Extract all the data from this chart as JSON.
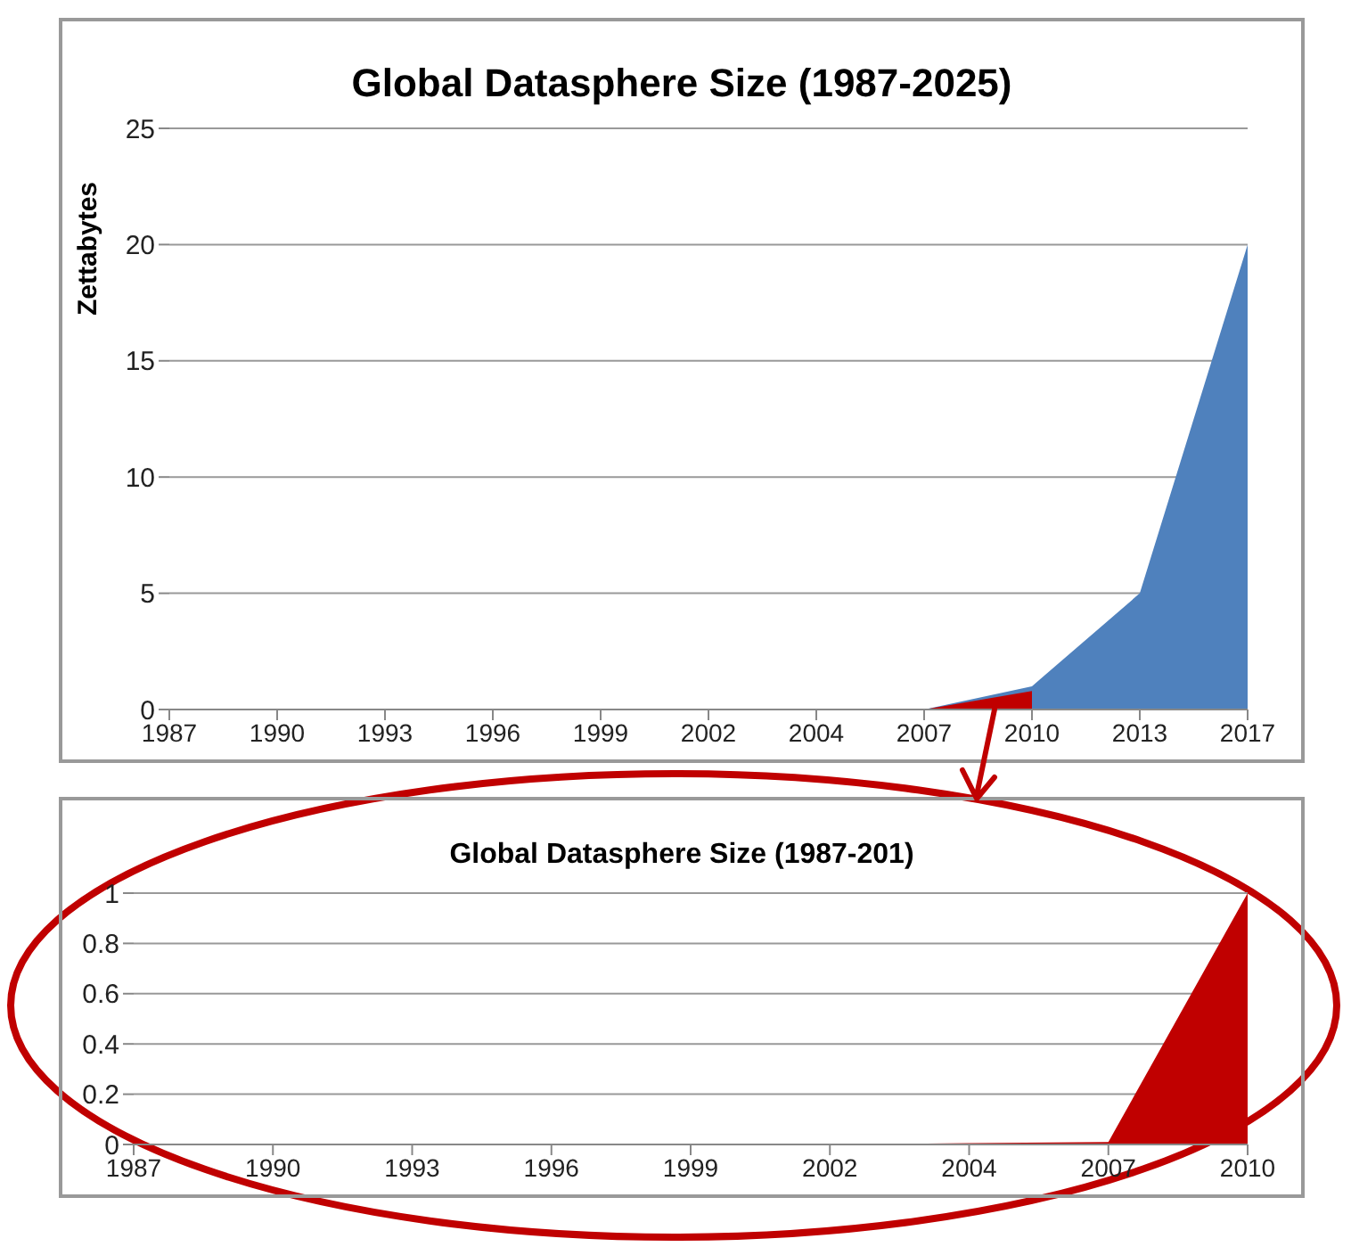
{
  "chart_data": [
    {
      "type": "area",
      "title": "Global Datasphere Size (1987-2025)",
      "ylabel": "Zettabytes",
      "categories": [
        "1987",
        "1990",
        "1993",
        "1996",
        "1999",
        "2002",
        "2004",
        "2007",
        "2010",
        "2013",
        "2017"
      ],
      "ylim": [
        0,
        25
      ],
      "yticks": [
        0,
        5,
        10,
        15,
        20,
        25
      ],
      "grid": "y",
      "legend": false,
      "series": [
        {
          "color": "#4f81bd",
          "values": [
            0,
            0,
            0,
            0,
            0,
            0,
            0,
            0,
            1,
            5,
            20
          ]
        },
        {
          "color": "#c00000",
          "values": [
            null,
            null,
            null,
            null,
            null,
            null,
            null,
            0,
            0.8,
            null,
            null
          ]
        }
      ]
    },
    {
      "type": "area",
      "title": "Global Datasphere Size (1987-201)",
      "categories": [
        "1987",
        "1990",
        "1993",
        "1996",
        "1999",
        "2002",
        "2004",
        "2007",
        "2010"
      ],
      "ylim": [
        0,
        1
      ],
      "yticks": [
        0,
        0.2,
        0.4,
        0.6,
        0.8,
        1
      ],
      "grid": "y",
      "legend": false,
      "series": [
        {
          "color": "#c00000",
          "values": [
            0,
            0,
            0,
            0,
            0,
            0,
            0.005,
            0.01,
            1
          ]
        }
      ]
    }
  ]
}
